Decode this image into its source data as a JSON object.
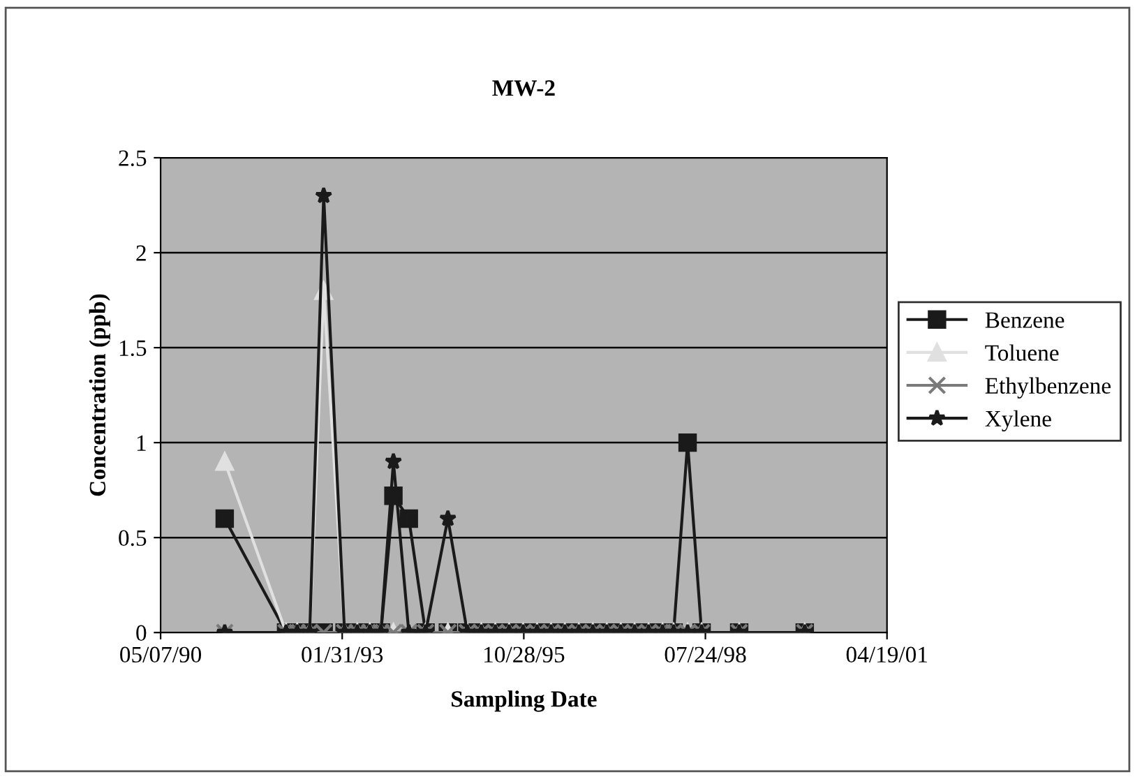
{
  "chart_data": {
    "type": "line",
    "title": "MW-2",
    "xlabel": "Sampling Date",
    "ylabel": "Concentration (ppb)",
    "x": [
      "1991-04-25",
      "1992-03-28",
      "1992-05-28",
      "1992-08-05",
      "1992-10-21",
      "1993-02-13",
      "1993-04-24",
      "1993-07-02",
      "1993-09-01",
      "1993-11-09",
      "1994-02-02",
      "1994-05-05",
      "1994-09-05",
      "1994-12-21",
      "1995-03-08",
      "1995-05-24",
      "1995-08-08",
      "1995-10-24",
      "1996-01-09",
      "1996-03-26",
      "1996-06-10",
      "1996-08-26",
      "1996-11-11",
      "1997-01-27",
      "1997-04-14",
      "1997-06-29",
      "1997-09-14",
      "1997-11-30",
      "1998-01-30",
      "1998-04-17",
      "1998-07-03",
      "1999-01-26",
      "2000-01-22"
    ],
    "series": [
      {
        "name": "Benzene",
        "color": "#1a1a1a",
        "marker": "square",
        "values": [
          0.6,
          0,
          0,
          0,
          0,
          0,
          0,
          0,
          0,
          0.72,
          0.6,
          0,
          0,
          0,
          0,
          0,
          0,
          0,
          0,
          0,
          0,
          0,
          0,
          0,
          0,
          0,
          0,
          0,
          0,
          1.0,
          0,
          0,
          0
        ]
      },
      {
        "name": "Toluene",
        "color": "#e0e0e0",
        "marker": "triangle",
        "values": [
          0.9,
          0,
          0,
          0,
          1.8,
          0,
          0,
          0,
          0,
          0,
          0,
          0,
          0,
          0,
          0,
          0,
          0,
          0,
          0,
          0,
          0,
          0,
          0,
          0,
          0,
          0,
          0,
          0,
          0,
          0,
          0,
          0,
          0
        ]
      },
      {
        "name": "Ethylbenzene",
        "color": "#7a7a7a",
        "marker": "cross",
        "values": [
          0,
          0,
          0,
          0,
          0,
          0,
          0,
          0,
          0,
          0,
          0,
          0,
          0,
          0,
          0,
          0,
          0,
          0,
          0,
          0,
          0,
          0,
          0,
          0,
          0,
          0,
          0,
          0,
          0,
          0,
          0,
          0,
          0
        ]
      },
      {
        "name": "Xylene",
        "color": "#1a1a1a",
        "marker": "star",
        "values": [
          0,
          0,
          0,
          0,
          2.3,
          0,
          0,
          0,
          0,
          0.9,
          0,
          0,
          0.6,
          0,
          0,
          0,
          0,
          0,
          0,
          0,
          0,
          0,
          0,
          0,
          0,
          0,
          0,
          0,
          0,
          0,
          0,
          0,
          0
        ]
      }
    ],
    "xlim": [
      "1990-05-07",
      "2001-04-19"
    ],
    "xticks": [
      {
        "value": "1990-05-07",
        "label": "05/07/90"
      },
      {
        "value": "1993-01-31",
        "label": "01/31/93"
      },
      {
        "value": "1995-10-28",
        "label": "10/28/95"
      },
      {
        "value": "1998-07-24",
        "label": "07/24/98"
      },
      {
        "value": "2001-04-19",
        "label": "04/19/01"
      }
    ],
    "ylim": [
      0,
      2.5
    ],
    "yticks": [
      0,
      0.5,
      1,
      1.5,
      2,
      2.5
    ],
    "grid": "y",
    "legend": "right",
    "line_style": "solid"
  }
}
